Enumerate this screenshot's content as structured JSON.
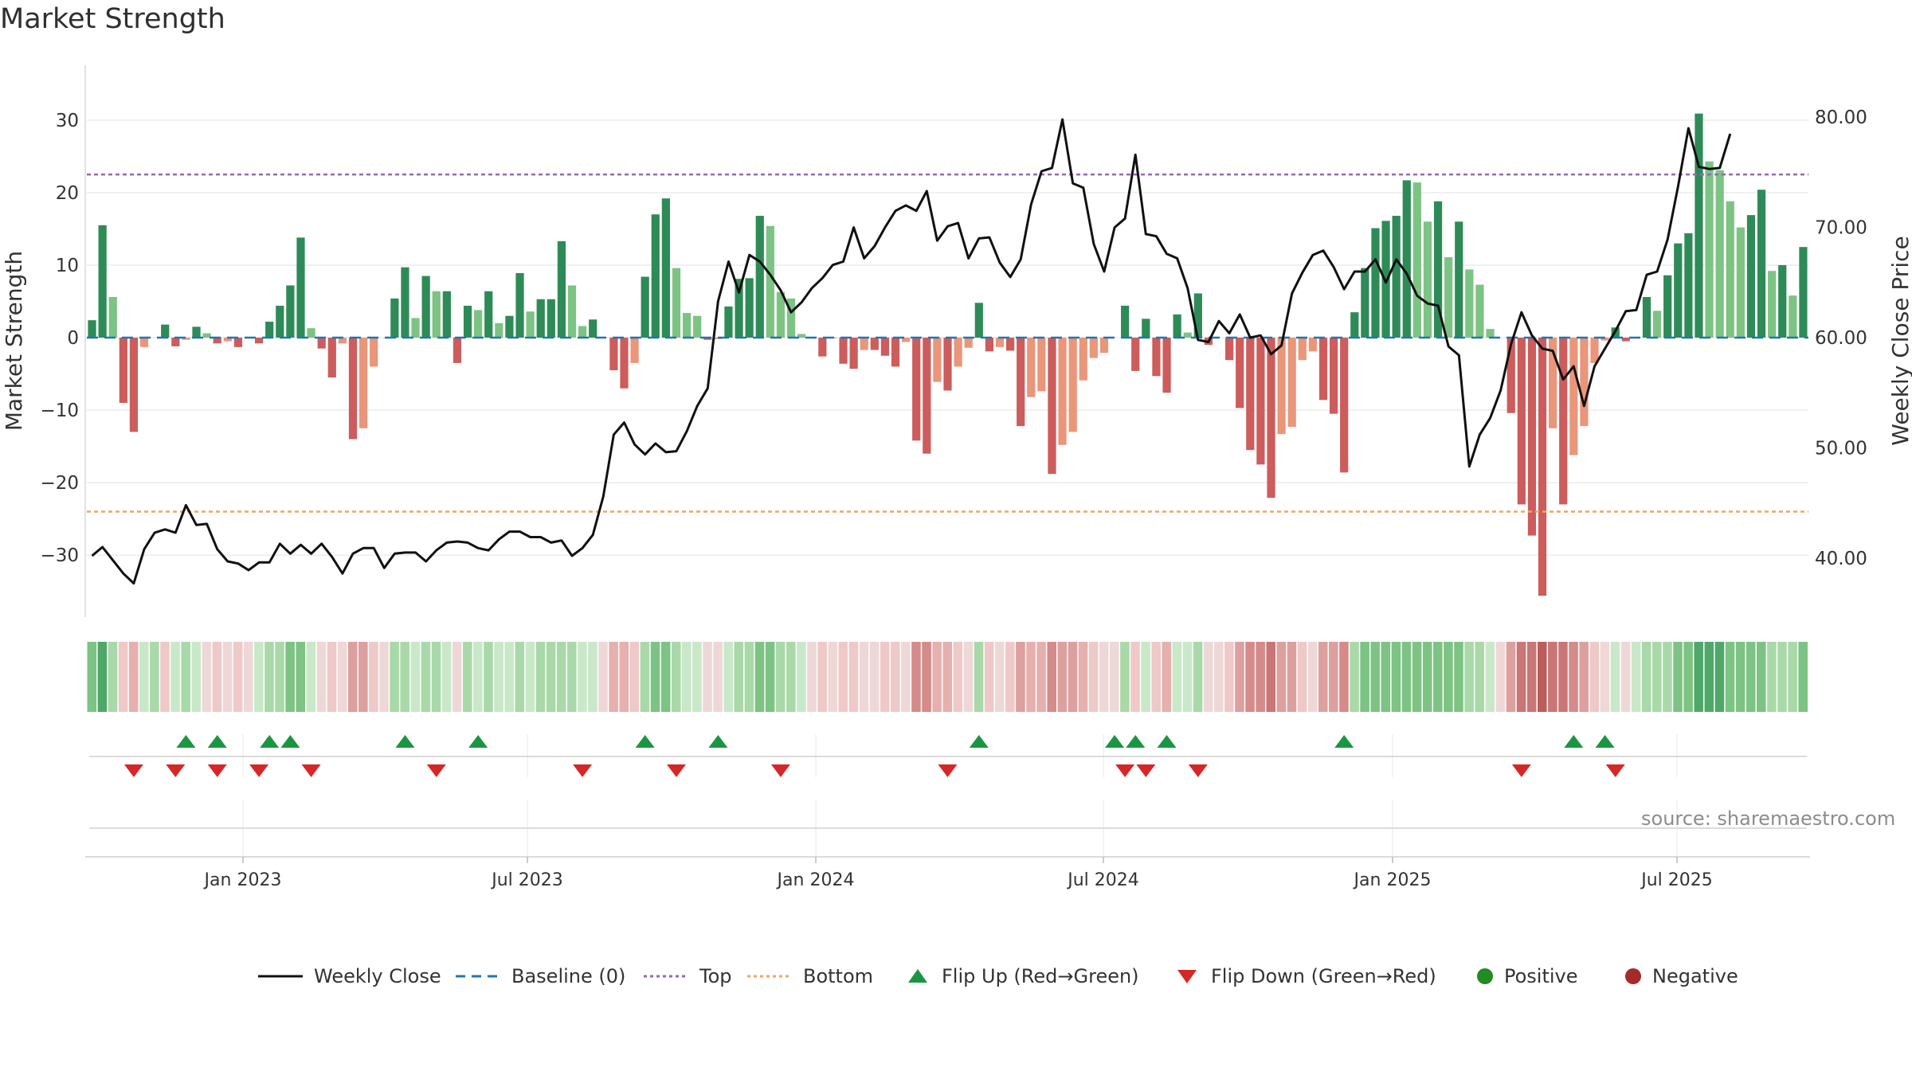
{
  "title": "Market Strength",
  "source": "source: sharemaestro.com",
  "colors": {
    "pos_dark": "#2e8b57",
    "pos_light": "#7dc383",
    "neg_dark": "#cd5c5c",
    "neg_light": "#e9967a",
    "line": "#111111",
    "baseline": "#1f77b4",
    "top": "#9467bd",
    "bottom": "#f4a460",
    "flip_up": "#1a9641",
    "flip_down": "#d62728",
    "positive": "#228b22",
    "negative": "#a52a2a"
  },
  "chart_data": {
    "type": "bar",
    "title": "Market Strength",
    "ylabel": "Market Strength",
    "y2label": "Weekly Close Price",
    "ylim": [
      -38,
      38
    ],
    "y2lim": [
      35,
      85
    ],
    "y_ticks": [
      "30",
      "20",
      "10",
      "0",
      "−10",
      "−20",
      "−30"
    ],
    "y2_ticks": [
      "80.00",
      "70.00",
      "60.00",
      "50.00",
      "40.00"
    ],
    "x_ticks": [
      "Jan 2023",
      "Jul 2023",
      "Jan 2024",
      "Jul 2024",
      "Jan 2025",
      "Jul 2025"
    ],
    "top_level": 22.5,
    "bottom_level": -24.0,
    "baseline": 0,
    "grid": true,
    "legend_position": "bottom",
    "series": [
      {
        "name": "Market Strength",
        "values": [
          2.4,
          15.5,
          5.6,
          -9.0,
          -13.0,
          -1.3,
          0,
          1.8,
          -1.2,
          -0.3,
          1.5,
          0.6,
          -0.8,
          -0.5,
          -1.3,
          0,
          -0.8,
          2.2,
          4.4,
          7.2,
          13.8,
          1.3,
          -1.5,
          -5.5,
          -0.8,
          -14.0,
          -12.5,
          -4.0,
          0,
          5.4,
          9.7,
          2.7,
          8.5,
          6.4,
          6.4,
          -3.5,
          4.4,
          3.8,
          6.4,
          2.0,
          3.0,
          8.9,
          3.6,
          5.3,
          5.3,
          13.3,
          7.2,
          1.6,
          2.5,
          0,
          -4.5,
          -7.0,
          -3.5,
          8.4,
          17.0,
          19.2,
          9.6,
          3.4,
          3.0,
          -0.3,
          -0.2,
          4.3,
          8.1,
          8.2,
          16.8,
          15.4,
          6.3,
          5.4,
          0.5,
          0,
          -2.6,
          -0.1,
          -3.6,
          -4.3,
          -1.7,
          -1.7,
          -2.5,
          -4.0,
          -0.6,
          -14.2,
          -16.0,
          -6.1,
          -7.3,
          -4.0,
          -1.4,
          4.8,
          -1.9,
          -1.3,
          -1.8,
          -12.2,
          -8.2,
          -7.4,
          -18.8,
          -14.8,
          -13.0,
          -5.9,
          -2.8,
          -2.1,
          0,
          4.4,
          -4.6,
          2.6,
          -5.3,
          -7.6,
          3.2,
          0.7,
          6.1,
          -1.0,
          0,
          -3.1,
          -9.7,
          -15.5,
          -17.5,
          -22.1,
          -13.3,
          -12.3,
          -3.1,
          -1.9,
          -8.6,
          -10.5,
          -18.6,
          3.5,
          9.6,
          15.1,
          16.1,
          16.8,
          21.7,
          21.4,
          16.0,
          18.8,
          11.1,
          16.0,
          9.4,
          7.3,
          1.2,
          0,
          -10.4,
          -23.0,
          -27.3,
          -35.6,
          -12.5,
          -23.0,
          -16.2,
          -12.2,
          -3.5,
          -0.4,
          1.4,
          -0.5,
          0,
          5.6,
          3.7,
          8.6,
          13.0,
          14.4,
          30.9,
          24.3,
          23.1,
          18.8,
          15.2,
          16.9,
          20.4,
          9.2,
          10.0,
          5.8,
          12.5
        ]
      },
      {
        "name": "Weekly Close",
        "values": [
          40.2,
          41.0,
          39.8,
          38.6,
          37.7,
          40.8,
          42.3,
          42.6,
          42.3,
          44.8,
          43.0,
          43.1,
          40.8,
          39.7,
          39.5,
          38.9,
          39.6,
          39.6,
          41.3,
          40.4,
          41.2,
          40.4,
          41.3,
          40.1,
          38.6,
          40.4,
          40.9,
          40.9,
          39.1,
          40.4,
          40.5,
          40.5,
          39.7,
          40.7,
          41.4,
          41.5,
          41.4,
          40.9,
          40.7,
          41.7,
          42.4,
          42.4,
          41.9,
          41.9,
          41.4,
          41.6,
          40.2,
          40.9,
          42.1,
          45.6,
          51.2,
          52.3,
          50.3,
          49.4,
          50.4,
          49.6,
          49.7,
          51.5,
          53.8,
          55.4,
          63.3,
          66.9,
          64.1,
          67.5,
          66.9,
          65.7,
          64.3,
          62.3,
          63.2,
          64.5,
          65.4,
          66.6,
          66.9,
          70.0,
          67.2,
          68.3,
          70.0,
          71.5,
          72.0,
          71.5,
          73.3,
          68.8,
          70.1,
          70.4,
          67.2,
          69.0,
          69.1,
          66.8,
          65.5,
          67.1,
          72.1,
          75.1,
          75.4,
          79.8,
          74.0,
          73.6,
          68.5,
          66.0,
          70.0,
          70.8,
          76.6,
          69.4,
          69.2,
          67.6,
          67.2,
          64.5,
          59.8,
          59.6,
          61.5,
          60.4,
          62.1,
          60.0,
          60.2,
          58.5,
          59.3,
          64.0,
          65.9,
          67.5,
          67.9,
          66.4,
          64.4,
          66.0,
          66.0,
          67.1,
          65.0,
          67.1,
          65.8,
          63.8,
          63.1,
          62.9,
          59.2,
          58.4,
          48.3,
          51.2,
          52.7,
          55.2,
          59.4,
          62.3,
          60.2,
          59.0,
          58.8,
          56.2,
          57.4,
          53.8,
          57.4,
          59.0,
          60.6,
          62.4,
          62.5,
          65.7,
          66.0,
          68.9,
          73.7,
          79.0,
          75.5,
          75.3,
          75.4,
          78.5
        ]
      }
    ],
    "heat_strip": [
      "#7dc383",
      "#4fa86a",
      "#a9d9a9",
      "#eec9c8",
      "#e5b0ae",
      "#c9e8c8",
      "#a9d9a9",
      "#eec9c8",
      "#c9e8c8",
      "#a9d9a9",
      "#c9e8c8",
      "#eed8d7",
      "#eec9c8",
      "#eed8d7",
      "#eec9c8",
      "#eed8d7",
      "#c9e8c8",
      "#a9d9a9",
      "#a9d9a9",
      "#7dc383",
      "#7dc383",
      "#c9e8c8",
      "#eed8d7",
      "#eec9c8",
      "#eed8d7",
      "#dca09f",
      "#dca09f",
      "#eec9c8",
      "#eed8d7",
      "#a9d9a9",
      "#a9d9a9",
      "#c9e8c8",
      "#a9d9a9",
      "#a9d9a9",
      "#c9e8c8",
      "#eed8d7",
      "#a9d9a9",
      "#c9e8c8",
      "#a9d9a9",
      "#c9e8c8",
      "#c9e8c8",
      "#a9d9a9",
      "#c9e8c8",
      "#a9d9a9",
      "#a9d9a9",
      "#a9d9a9",
      "#a9d9a9",
      "#c9e8c8",
      "#c9e8c8",
      "#eed8d7",
      "#e5b0ae",
      "#e5b0ae",
      "#eec9c8",
      "#a9d9a9",
      "#7dc383",
      "#7dc383",
      "#a9d9a9",
      "#c9e8c8",
      "#c9e8c8",
      "#eed8d7",
      "#eed8d7",
      "#c9e8c8",
      "#a9d9a9",
      "#a9d9a9",
      "#7dc383",
      "#7dc383",
      "#a9d9a9",
      "#a9d9a9",
      "#c9e8c8",
      "#eed8d7",
      "#eec9c8",
      "#eed8d7",
      "#eec9c8",
      "#eec9c8",
      "#eed8d7",
      "#eed8d7",
      "#eec9c8",
      "#eec9c8",
      "#eed8d7",
      "#d48b8a",
      "#d48b8a",
      "#e5b0ae",
      "#e5b0ae",
      "#eec9c8",
      "#eed8d7",
      "#a9d9a9",
      "#eec9c8",
      "#eed8d7",
      "#eec9c8",
      "#dca09f",
      "#e5b0ae",
      "#e5b0ae",
      "#d48b8a",
      "#dca09f",
      "#dca09f",
      "#e5b0ae",
      "#eec9c8",
      "#eed8d7",
      "#eed8d7",
      "#a9d9a9",
      "#eec9c8",
      "#c9e8c8",
      "#eec9c8",
      "#e5b0ae",
      "#c9e8c8",
      "#c9e8c8",
      "#a9d9a9",
      "#eed8d7",
      "#eed8d7",
      "#eec9c8",
      "#dca09f",
      "#d48b8a",
      "#d48b8a",
      "#c97676",
      "#dca09f",
      "#dca09f",
      "#eec9c8",
      "#eed8d7",
      "#dca09f",
      "#dca09f",
      "#d48b8a",
      "#a9d9a9",
      "#7dc383",
      "#7dc383",
      "#7dc383",
      "#7dc383",
      "#7dc383",
      "#7dc383",
      "#7dc383",
      "#7dc383",
      "#7dc383",
      "#7dc383",
      "#a9d9a9",
      "#a9d9a9",
      "#c9e8c8",
      "#eed8d7",
      "#dca09f",
      "#c97676",
      "#c97676",
      "#bb5d5d",
      "#c97676",
      "#c97676",
      "#d48b8a",
      "#dca09f",
      "#eec9c8",
      "#eed8d7",
      "#c9e8c8",
      "#eed8d7",
      "#c9e8c8",
      "#a9d9a9",
      "#a9d9a9",
      "#a9d9a9",
      "#7dc383",
      "#7dc383",
      "#4fa86a",
      "#4fa86a",
      "#4fa86a",
      "#7dc383",
      "#7dc383",
      "#7dc383",
      "#7dc383",
      "#a9d9a9",
      "#a9d9a9",
      "#a9d9a9",
      "#7dc383"
    ],
    "flip_up_weeks": [
      9,
      12,
      17,
      19,
      30,
      37,
      53,
      60,
      85,
      98,
      100,
      103,
      120,
      142,
      145
    ],
    "flip_down_weeks": [
      4,
      8,
      12,
      16,
      21,
      33,
      47,
      56,
      66,
      82,
      99,
      101,
      106,
      137,
      146
    ]
  },
  "legend": [
    {
      "label": "Weekly Close",
      "symbol": "line-solid",
      "color": "#111111"
    },
    {
      "label": "Baseline (0)",
      "symbol": "line-dash",
      "color": "#1f77b4"
    },
    {
      "label": "Top",
      "symbol": "line-dot",
      "color": "#9467bd"
    },
    {
      "label": "Bottom",
      "symbol": "line-dot",
      "color": "#f4a460"
    },
    {
      "label": "Flip Up (Red→Green)",
      "symbol": "triangle-up-icon",
      "color": "#1a9641"
    },
    {
      "label": "Flip Down (Green→Red)",
      "symbol": "triangle-down-icon",
      "color": "#d62728"
    },
    {
      "label": "Positive",
      "symbol": "circle-icon",
      "color": "#228b22"
    },
    {
      "label": "Negative",
      "symbol": "circle-icon",
      "color": "#a52a2a"
    }
  ]
}
